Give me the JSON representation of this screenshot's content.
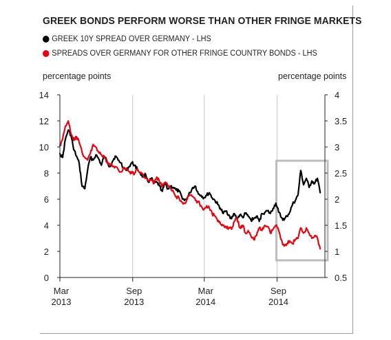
{
  "chart_data": {
    "type": "line",
    "title": "GREEK BONDS PERFORM WORSE THAN OTHER FRINGE MARKETS",
    "legend": [
      {
        "label": "GREEK 10Y SPREAD OVER GERMANY - LHS",
        "color": "#000000"
      },
      {
        "label": "SPREADS OVER GERMANY FOR OTHER FRINGE COUNTRY BONDS - LHS",
        "color": "#e30613"
      }
    ],
    "left_axis": {
      "label": "percentage points",
      "ticks": [
        "0",
        "2",
        "4",
        "6",
        "8",
        "10",
        "12",
        "14"
      ],
      "ylim": [
        0,
        14
      ]
    },
    "right_axis": {
      "label": "percentage points",
      "ticks": [
        "0.5",
        "1",
        "1.5",
        "2",
        "2.5",
        "3",
        "3.5",
        "4"
      ],
      "ylim": [
        0.5,
        4
      ]
    },
    "x_ticks": [
      {
        "month": "Mar",
        "year": "2013",
        "x": "2013-03-01"
      },
      {
        "month": "Sep",
        "year": "2013",
        "x": "2013-09-01"
      },
      {
        "month": "Mar",
        "year": "2014",
        "x": "2014-03-01"
      },
      {
        "month": "Sep",
        "year": "2014",
        "x": "2014-09-01"
      }
    ],
    "xlim": [
      "2013-03-01",
      "2014-12-31"
    ],
    "highlight_range": [
      "2014-09-01",
      "2014-12-31"
    ],
    "grid": "vertical",
    "series": [
      {
        "name": "GREEK 10Y SPREAD OVER GERMANY - LHS",
        "color": "#000000",
        "axis": "left",
        "x": [
          "2013-03-01",
          "2013-03-08",
          "2013-03-15",
          "2013-03-22",
          "2013-03-29",
          "2013-04-05",
          "2013-04-12",
          "2013-04-19",
          "2013-04-26",
          "2013-05-03",
          "2013-05-10",
          "2013-05-17",
          "2013-05-24",
          "2013-05-31",
          "2013-06-07",
          "2013-06-14",
          "2013-06-21",
          "2013-06-28",
          "2013-07-05",
          "2013-07-12",
          "2013-07-19",
          "2013-07-26",
          "2013-08-02",
          "2013-08-09",
          "2013-08-16",
          "2013-08-23",
          "2013-08-30",
          "2013-09-06",
          "2013-09-13",
          "2013-09-20",
          "2013-09-27",
          "2013-10-04",
          "2013-10-11",
          "2013-10-18",
          "2013-10-25",
          "2013-11-01",
          "2013-11-08",
          "2013-11-15",
          "2013-11-22",
          "2013-11-29",
          "2013-12-06",
          "2013-12-13",
          "2013-12-20",
          "2013-12-27",
          "2014-01-03",
          "2014-01-10",
          "2014-01-17",
          "2014-01-24",
          "2014-01-31",
          "2014-02-07",
          "2014-02-14",
          "2014-02-21",
          "2014-02-28",
          "2014-03-07",
          "2014-03-14",
          "2014-03-21",
          "2014-03-28",
          "2014-04-04",
          "2014-04-11",
          "2014-04-18",
          "2014-04-25",
          "2014-05-02",
          "2014-05-09",
          "2014-05-16",
          "2014-05-23",
          "2014-05-30",
          "2014-06-06",
          "2014-06-13",
          "2014-06-20",
          "2014-06-27",
          "2014-07-04",
          "2014-07-11",
          "2014-07-18",
          "2014-07-25",
          "2014-08-01",
          "2014-08-08",
          "2014-08-15",
          "2014-08-22",
          "2014-08-29",
          "2014-09-05",
          "2014-09-12",
          "2014-09-19",
          "2014-09-26",
          "2014-10-03",
          "2014-10-10",
          "2014-10-17",
          "2014-10-24",
          "2014-10-31",
          "2014-11-07",
          "2014-11-14",
          "2014-11-21",
          "2014-11-28",
          "2014-12-05",
          "2014-12-12",
          "2014-12-19"
        ],
        "values": [
          9.5,
          9.2,
          10.6,
          11.3,
          10.9,
          9.8,
          9.3,
          8.7,
          7.0,
          6.8,
          8.2,
          9.2,
          9.0,
          9.4,
          9.1,
          8.6,
          9.3,
          8.9,
          8.5,
          8.9,
          9.3,
          9.0,
          8.8,
          8.4,
          8.2,
          8.5,
          8.8,
          8.6,
          8.3,
          8.0,
          7.7,
          7.9,
          7.3,
          7.6,
          7.2,
          7.3,
          7.0,
          6.6,
          7.2,
          6.8,
          7.0,
          6.9,
          6.7,
          6.6,
          6.2,
          5.9,
          6.1,
          6.5,
          6.9,
          7.0,
          6.4,
          6.3,
          6.1,
          6.3,
          6.5,
          6.1,
          5.9,
          5.6,
          5.3,
          4.9,
          5.1,
          4.8,
          4.5,
          4.9,
          4.5,
          4.8,
          4.6,
          4.9,
          4.7,
          4.4,
          4.5,
          4.7,
          4.3,
          4.9,
          5.0,
          5.1,
          4.9,
          5.3,
          5.7,
          5.0,
          4.6,
          4.4,
          4.7,
          5.0,
          5.6,
          5.9,
          6.3,
          8.2,
          7.1,
          7.6,
          6.9,
          7.4,
          7.2,
          7.6,
          6.5
        ]
      },
      {
        "name": "SPREADS OVER GERMANY FOR OTHER FRINGE COUNTRY BONDS - LHS",
        "color": "#e30613",
        "axis": "left",
        "x": [
          "2013-03-01",
          "2013-03-08",
          "2013-03-15",
          "2013-03-22",
          "2013-03-29",
          "2013-04-05",
          "2013-04-12",
          "2013-04-19",
          "2013-04-26",
          "2013-05-03",
          "2013-05-10",
          "2013-05-17",
          "2013-05-24",
          "2013-05-31",
          "2013-06-07",
          "2013-06-14",
          "2013-06-21",
          "2013-06-28",
          "2013-07-05",
          "2013-07-12",
          "2013-07-19",
          "2013-07-26",
          "2013-08-02",
          "2013-08-09",
          "2013-08-16",
          "2013-08-23",
          "2013-08-30",
          "2013-09-06",
          "2013-09-13",
          "2013-09-20",
          "2013-09-27",
          "2013-10-04",
          "2013-10-11",
          "2013-10-18",
          "2013-10-25",
          "2013-11-01",
          "2013-11-08",
          "2013-11-15",
          "2013-11-22",
          "2013-11-29",
          "2013-12-06",
          "2013-12-13",
          "2013-12-20",
          "2013-12-27",
          "2014-01-03",
          "2014-01-10",
          "2014-01-17",
          "2014-01-24",
          "2014-01-31",
          "2014-02-07",
          "2014-02-14",
          "2014-02-21",
          "2014-02-28",
          "2014-03-07",
          "2014-03-14",
          "2014-03-21",
          "2014-03-28",
          "2014-04-04",
          "2014-04-11",
          "2014-04-18",
          "2014-04-25",
          "2014-05-02",
          "2014-05-09",
          "2014-05-16",
          "2014-05-23",
          "2014-05-30",
          "2014-06-06",
          "2014-06-13",
          "2014-06-20",
          "2014-06-27",
          "2014-07-04",
          "2014-07-11",
          "2014-07-18",
          "2014-07-25",
          "2014-08-01",
          "2014-08-08",
          "2014-08-15",
          "2014-08-22",
          "2014-08-29",
          "2014-09-05",
          "2014-09-12",
          "2014-09-19",
          "2014-09-26",
          "2014-10-03",
          "2014-10-10",
          "2014-10-17",
          "2014-10-24",
          "2014-10-31",
          "2014-11-07",
          "2014-11-14",
          "2014-11-21",
          "2014-11-28",
          "2014-12-05",
          "2014-12-12",
          "2014-12-19"
        ],
        "values": [
          10.1,
          10.6,
          11.6,
          12.0,
          11.0,
          10.5,
          10.8,
          10.3,
          9.6,
          9.2,
          9.0,
          9.5,
          10.2,
          10.0,
          9.6,
          9.4,
          9.2,
          8.8,
          8.7,
          8.5,
          8.5,
          8.3,
          8.1,
          8.4,
          8.3,
          8.1,
          8.0,
          8.0,
          8.3,
          8.0,
          7.9,
          7.6,
          7.4,
          7.5,
          7.2,
          7.7,
          7.3,
          7.0,
          7.3,
          7.0,
          6.8,
          6.6,
          6.2,
          6.1,
          5.8,
          5.7,
          6.0,
          6.3,
          6.2,
          5.9,
          5.8,
          5.5,
          5.2,
          5.5,
          5.3,
          4.9,
          4.7,
          4.3,
          4.1,
          4.0,
          3.9,
          3.8,
          3.7,
          4.3,
          4.5,
          3.8,
          4.0,
          3.4,
          3.6,
          3.2,
          2.9,
          3.2,
          3.8,
          3.6,
          4.0,
          3.9,
          3.4,
          3.7,
          4.0,
          3.6,
          2.9,
          2.4,
          2.6,
          2.8,
          2.6,
          2.9,
          3.0,
          3.8,
          3.4,
          3.8,
          3.4,
          3.0,
          3.2,
          3.0,
          2.2
        ]
      }
    ]
  }
}
